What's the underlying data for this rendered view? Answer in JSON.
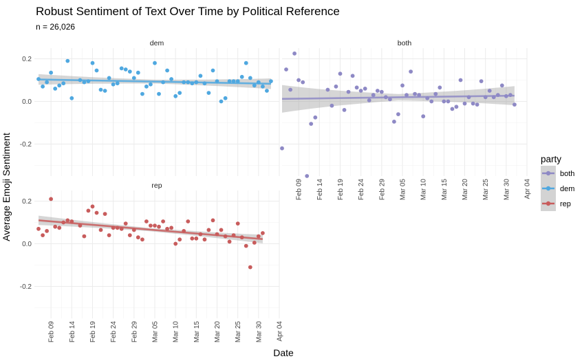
{
  "title": "Robust Sentiment of Text Over Time by Political Reference",
  "subtitle": "n = 26,026",
  "xlabel": "Date",
  "ylabel": "Average Emoji Sentiment",
  "legend": {
    "title": "party",
    "position": "right",
    "entries": [
      {
        "name": "both",
        "color": "#8E89C5"
      },
      {
        "name": "dem",
        "color": "#4FA8E0"
      },
      {
        "name": "rep",
        "color": "#C85C5C"
      }
    ]
  },
  "chart_data": {
    "type": "scatter",
    "facet_layout": "2x2 grid, facets: dem (top-left), both (top-right), rep (bottom-left)",
    "x_range": [
      "2016-02-05",
      "2016-04-04"
    ],
    "ylim": [
      -0.35,
      0.25
    ],
    "yticks": [
      0.2,
      0.0,
      -0.2
    ],
    "ytick_labels": [
      "0.2",
      "0.0",
      "-0.2"
    ],
    "xticks": [
      "2016-02-09",
      "2016-02-14",
      "2016-02-19",
      "2016-02-24",
      "2016-02-29",
      "2016-03-05",
      "2016-03-10",
      "2016-03-15",
      "2016-03-20",
      "2016-03-25",
      "2016-03-30",
      "2016-04-04"
    ],
    "xtick_labels": [
      "Feb 09",
      "Feb 14",
      "Feb 19",
      "Feb 24",
      "Feb 29",
      "Mar 05",
      "Mar 10",
      "Mar 15",
      "Mar 20",
      "Mar 25",
      "Mar 30",
      "Apr 04"
    ],
    "grid": true,
    "smoother": "linear fit with confidence band",
    "series": [
      {
        "name": "dem",
        "color": "#4FA8E0",
        "points": [
          [
            "2016-02-06",
            0.105
          ],
          [
            "2016-02-07",
            0.07
          ],
          [
            "2016-02-08",
            0.09
          ],
          [
            "2016-02-09",
            0.135
          ],
          [
            "2016-02-10",
            0.06
          ],
          [
            "2016-02-11",
            0.075
          ],
          [
            "2016-02-12",
            0.085
          ],
          [
            "2016-02-13",
            0.19
          ],
          [
            "2016-02-14",
            0.015
          ],
          [
            "2016-02-16",
            0.1
          ],
          [
            "2016-02-17",
            0.09
          ],
          [
            "2016-02-18",
            0.095
          ],
          [
            "2016-02-19",
            0.18
          ],
          [
            "2016-02-20",
            0.145
          ],
          [
            "2016-02-21",
            0.055
          ],
          [
            "2016-02-22",
            0.05
          ],
          [
            "2016-02-23",
            0.11
          ],
          [
            "2016-02-24",
            0.08
          ],
          [
            "2016-02-25",
            0.085
          ],
          [
            "2016-02-26",
            0.155
          ],
          [
            "2016-02-27",
            0.15
          ],
          [
            "2016-02-28",
            0.14
          ],
          [
            "2016-02-29",
            0.11
          ],
          [
            "2016-03-01",
            0.135
          ],
          [
            "2016-03-02",
            0.035
          ],
          [
            "2016-03-03",
            0.07
          ],
          [
            "2016-03-04",
            0.08
          ],
          [
            "2016-03-05",
            0.18
          ],
          [
            "2016-03-06",
            0.035
          ],
          [
            "2016-03-07",
            0.09
          ],
          [
            "2016-03-08",
            0.145
          ],
          [
            "2016-03-09",
            0.105
          ],
          [
            "2016-03-10",
            0.025
          ],
          [
            "2016-03-11",
            0.04
          ],
          [
            "2016-03-12",
            0.09
          ],
          [
            "2016-03-13",
            0.09
          ],
          [
            "2016-03-14",
            0.085
          ],
          [
            "2016-03-15",
            0.09
          ],
          [
            "2016-03-16",
            0.12
          ],
          [
            "2016-03-17",
            0.085
          ],
          [
            "2016-03-18",
            0.04
          ],
          [
            "2016-03-19",
            0.145
          ],
          [
            "2016-03-20",
            0.095
          ],
          [
            "2016-03-21",
            0.0
          ],
          [
            "2016-03-22",
            0.015
          ],
          [
            "2016-03-23",
            0.095
          ],
          [
            "2016-03-24",
            0.095
          ],
          [
            "2016-03-25",
            0.095
          ],
          [
            "2016-03-26",
            0.115
          ],
          [
            "2016-03-27",
            0.18
          ],
          [
            "2016-03-28",
            0.11
          ],
          [
            "2016-03-29",
            0.075
          ],
          [
            "2016-03-30",
            0.09
          ],
          [
            "2016-03-31",
            0.07
          ],
          [
            "2016-04-01",
            0.05
          ],
          [
            "2016-04-02",
            0.095
          ]
        ],
        "fit": [
          [
            "2016-02-06",
            0.103
          ],
          [
            "2016-04-02",
            0.083
          ]
        ],
        "ci_halfwidth": [
          0.025,
          0.012,
          0.025
        ]
      },
      {
        "name": "both",
        "color": "#8E89C5",
        "points": [
          [
            "2016-02-05",
            -0.22
          ],
          [
            "2016-02-06",
            0.15
          ],
          [
            "2016-02-07",
            0.055
          ],
          [
            "2016-02-08",
            0.225
          ],
          [
            "2016-02-09",
            0.1
          ],
          [
            "2016-02-10",
            0.09
          ],
          [
            "2016-02-11",
            -0.35
          ],
          [
            "2016-02-12",
            -0.105
          ],
          [
            "2016-02-13",
            -0.075
          ],
          [
            "2016-02-16",
            0.055
          ],
          [
            "2016-02-17",
            -0.02
          ],
          [
            "2016-02-18",
            0.07
          ],
          [
            "2016-02-19",
            0.13
          ],
          [
            "2016-02-20",
            -0.04
          ],
          [
            "2016-02-21",
            0.045
          ],
          [
            "2016-02-22",
            0.12
          ],
          [
            "2016-02-23",
            0.065
          ],
          [
            "2016-02-24",
            0.05
          ],
          [
            "2016-02-25",
            0.06
          ],
          [
            "2016-02-26",
            0.005
          ],
          [
            "2016-02-27",
            0.03
          ],
          [
            "2016-02-28",
            0.05
          ],
          [
            "2016-02-29",
            0.045
          ],
          [
            "2016-03-01",
            0.02
          ],
          [
            "2016-03-02",
            0.01
          ],
          [
            "2016-03-03",
            -0.095
          ],
          [
            "2016-03-04",
            -0.06
          ],
          [
            "2016-03-05",
            0.075
          ],
          [
            "2016-03-06",
            0.03
          ],
          [
            "2016-03-07",
            0.14
          ],
          [
            "2016-03-08",
            0.035
          ],
          [
            "2016-03-09",
            0.03
          ],
          [
            "2016-03-10",
            -0.07
          ],
          [
            "2016-03-11",
            0.015
          ],
          [
            "2016-03-12",
            0.0
          ],
          [
            "2016-03-13",
            0.035
          ],
          [
            "2016-03-14",
            0.065
          ],
          [
            "2016-03-15",
            0.0
          ],
          [
            "2016-03-16",
            0.0
          ],
          [
            "2016-03-17",
            -0.035
          ],
          [
            "2016-03-18",
            -0.025
          ],
          [
            "2016-03-19",
            0.1
          ],
          [
            "2016-03-20",
            -0.01
          ],
          [
            "2016-03-21",
            0.02
          ],
          [
            "2016-03-22",
            -0.01
          ],
          [
            "2016-03-23",
            -0.015
          ],
          [
            "2016-03-24",
            0.095
          ],
          [
            "2016-03-25",
            0.02
          ],
          [
            "2016-03-26",
            0.05
          ],
          [
            "2016-03-27",
            0.02
          ],
          [
            "2016-03-28",
            0.03
          ],
          [
            "2016-03-29",
            0.075
          ],
          [
            "2016-03-30",
            0.025
          ],
          [
            "2016-03-31",
            0.03
          ],
          [
            "2016-04-01",
            -0.015
          ]
        ],
        "fit": [
          [
            "2016-02-05",
            0.012
          ],
          [
            "2016-04-01",
            0.027
          ]
        ],
        "ci_halfwidth": [
          0.065,
          0.02,
          0.045
        ]
      },
      {
        "name": "rep",
        "color": "#C85C5C",
        "points": [
          [
            "2016-02-06",
            0.07
          ],
          [
            "2016-02-07",
            0.04
          ],
          [
            "2016-02-08",
            0.06
          ],
          [
            "2016-02-09",
            0.21
          ],
          [
            "2016-02-10",
            0.08
          ],
          [
            "2016-02-11",
            0.075
          ],
          [
            "2016-02-12",
            0.1
          ],
          [
            "2016-02-13",
            0.11
          ],
          [
            "2016-02-14",
            0.105
          ],
          [
            "2016-02-16",
            0.085
          ],
          [
            "2016-02-17",
            0.035
          ],
          [
            "2016-02-18",
            0.155
          ],
          [
            "2016-02-19",
            0.175
          ],
          [
            "2016-02-20",
            0.145
          ],
          [
            "2016-02-21",
            0.065
          ],
          [
            "2016-02-22",
            0.14
          ],
          [
            "2016-02-23",
            0.04
          ],
          [
            "2016-02-24",
            0.075
          ],
          [
            "2016-02-25",
            0.075
          ],
          [
            "2016-02-26",
            0.07
          ],
          [
            "2016-02-27",
            0.095
          ],
          [
            "2016-02-28",
            0.04
          ],
          [
            "2016-02-29",
            0.065
          ],
          [
            "2016-03-01",
            0.03
          ],
          [
            "2016-03-02",
            0.02
          ],
          [
            "2016-03-03",
            0.105
          ],
          [
            "2016-03-04",
            0.085
          ],
          [
            "2016-03-05",
            0.085
          ],
          [
            "2016-03-06",
            0.08
          ],
          [
            "2016-03-07",
            0.105
          ],
          [
            "2016-03-08",
            0.07
          ],
          [
            "2016-03-09",
            0.075
          ],
          [
            "2016-03-10",
            0.0
          ],
          [
            "2016-03-11",
            0.02
          ],
          [
            "2016-03-12",
            0.06
          ],
          [
            "2016-03-13",
            0.105
          ],
          [
            "2016-03-14",
            0.025
          ],
          [
            "2016-03-15",
            0.025
          ],
          [
            "2016-03-16",
            0.045
          ],
          [
            "2016-03-17",
            0.02
          ],
          [
            "2016-03-18",
            0.065
          ],
          [
            "2016-03-19",
            0.11
          ],
          [
            "2016-03-20",
            0.045
          ],
          [
            "2016-03-21",
            0.065
          ],
          [
            "2016-03-22",
            0.035
          ],
          [
            "2016-03-23",
            0.01
          ],
          [
            "2016-03-24",
            0.04
          ],
          [
            "2016-03-25",
            0.095
          ],
          [
            "2016-03-26",
            0.03
          ],
          [
            "2016-03-27",
            -0.01
          ],
          [
            "2016-03-28",
            -0.11
          ],
          [
            "2016-03-29",
            0.005
          ],
          [
            "2016-03-30",
            0.035
          ],
          [
            "2016-03-31",
            0.05
          ]
        ],
        "fit": [
          [
            "2016-02-06",
            0.11
          ],
          [
            "2016-03-31",
            0.022
          ]
        ],
        "ci_halfwidth": [
          0.022,
          0.01,
          0.02
        ]
      }
    ]
  }
}
